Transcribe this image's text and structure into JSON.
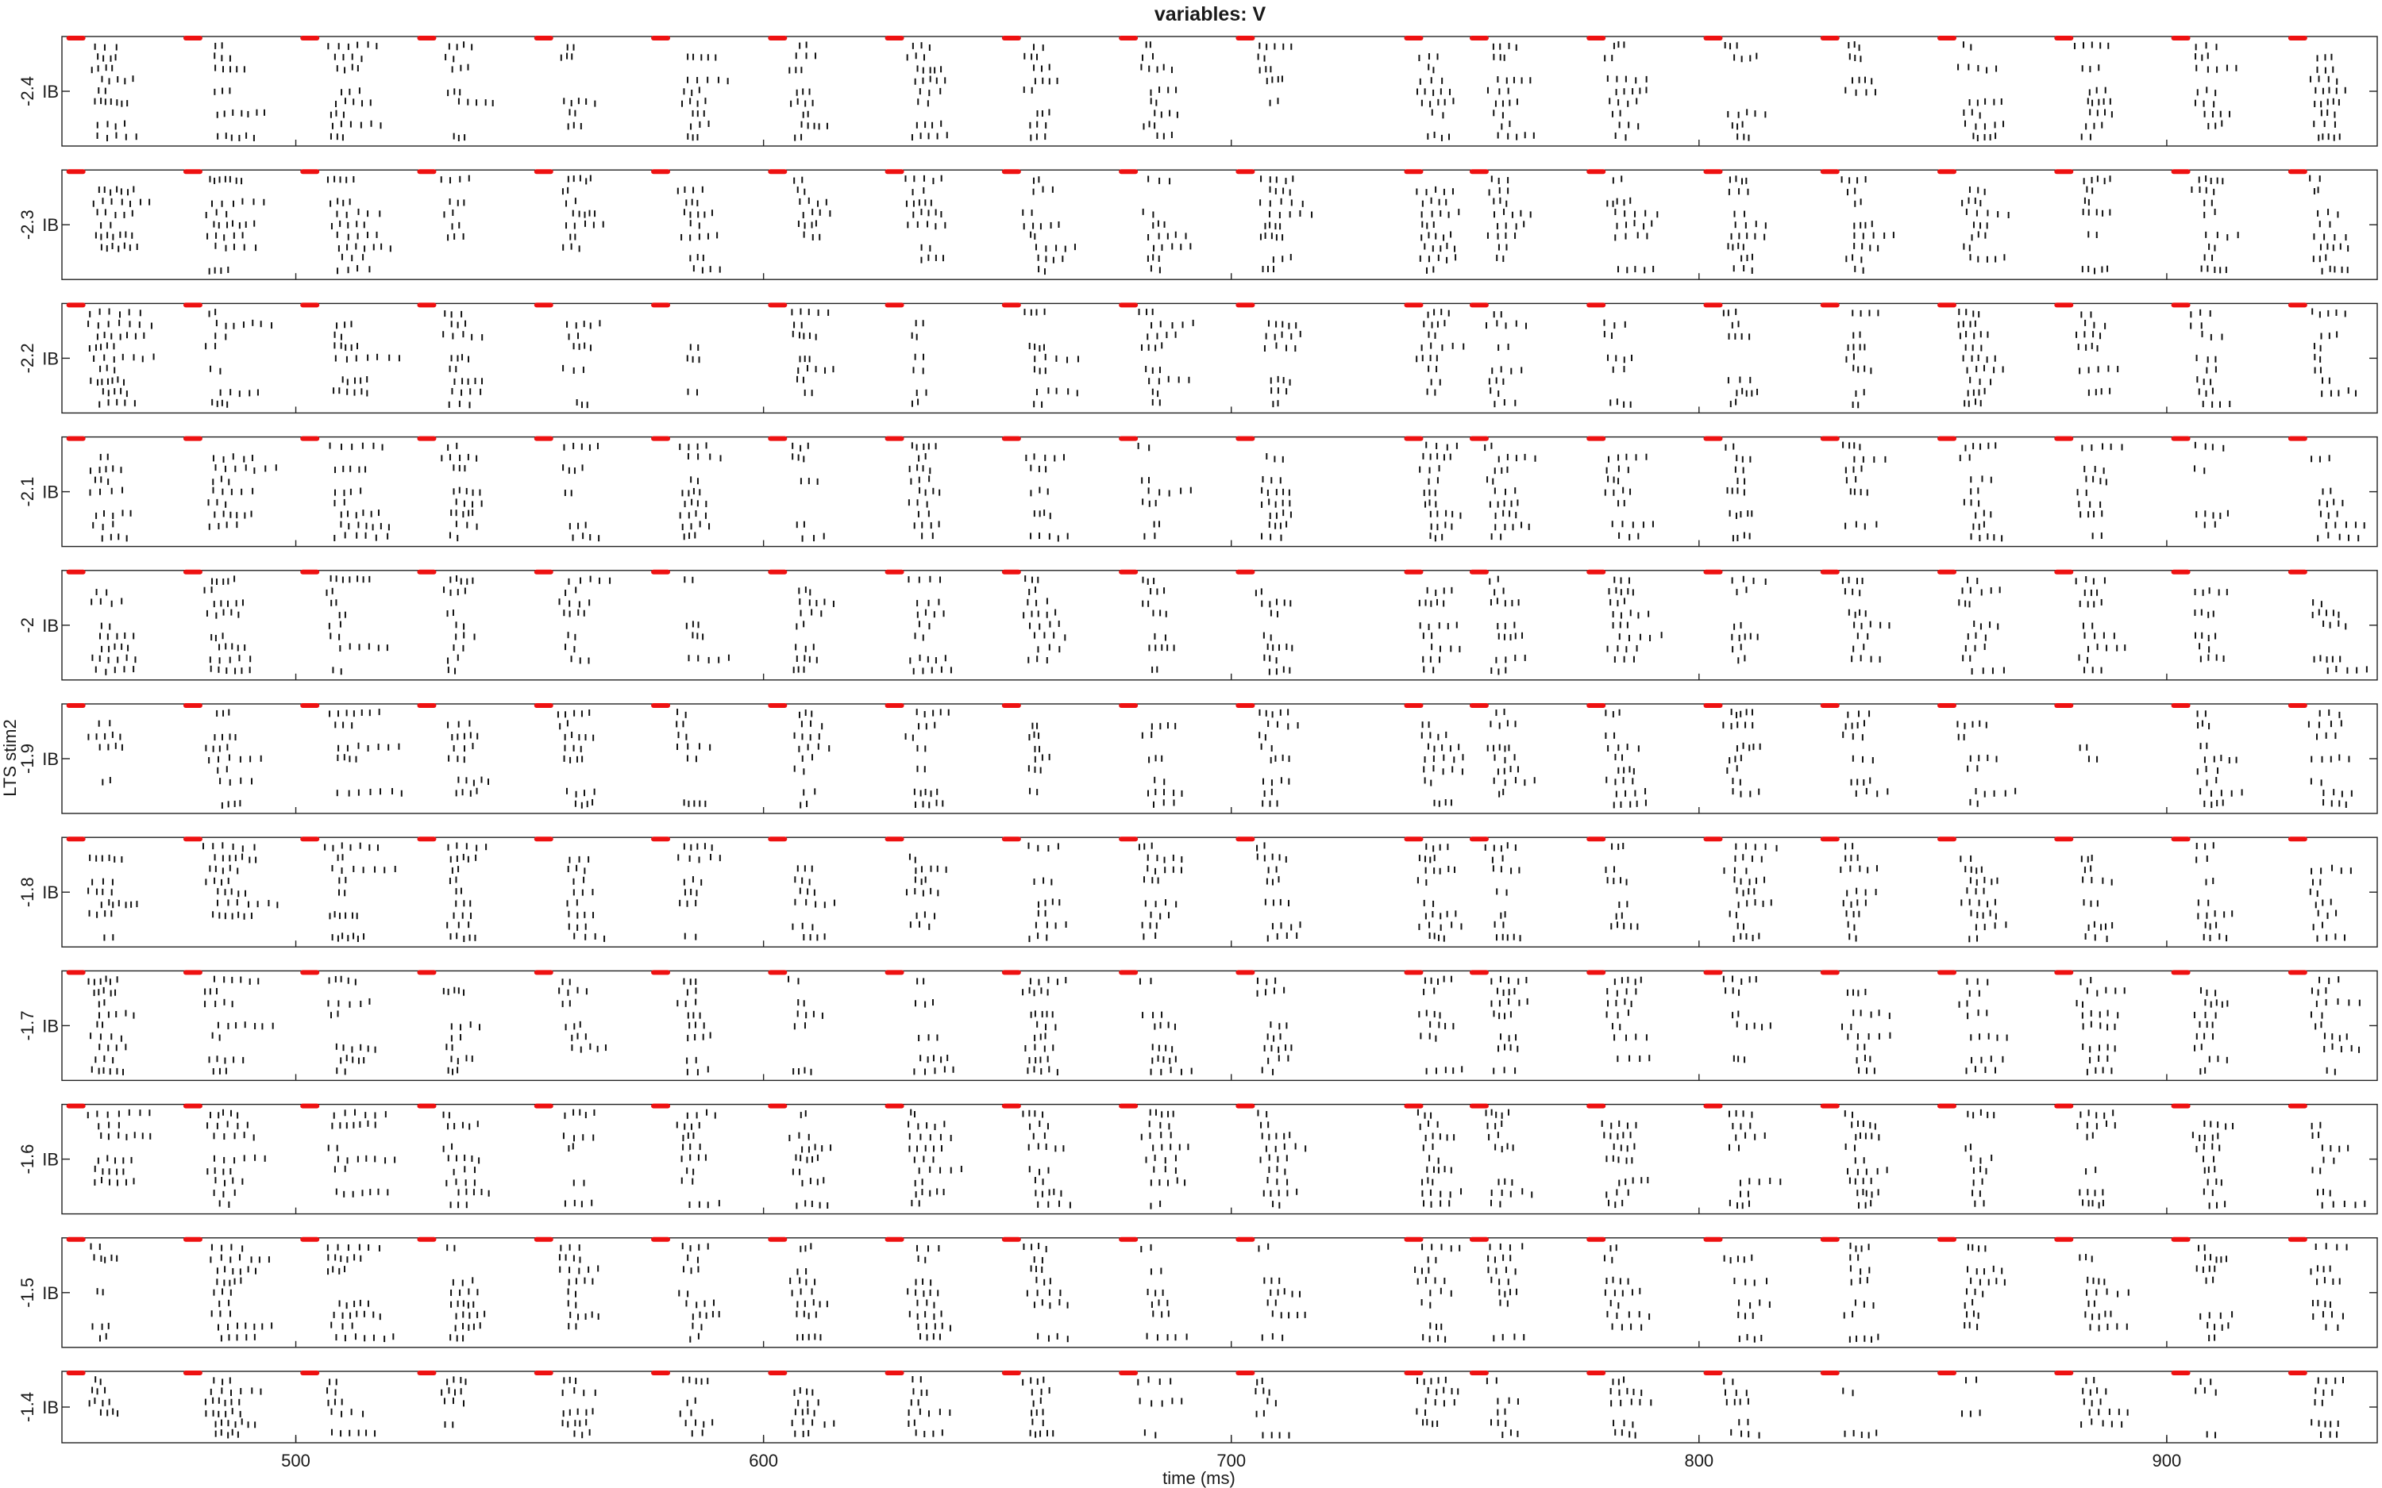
{
  "figure": {
    "title": "variables: V",
    "xlabel": "time (ms)",
    "ylabel": "LTS stim2"
  },
  "chart_data": {
    "type": "raster",
    "title": "variables: V",
    "xlabel": "time (ms)",
    "ylabel": "LTS stim2",
    "xlim": [
      450,
      945
    ],
    "xticks": [
      500,
      600,
      700,
      800,
      900
    ],
    "population_label": "IB",
    "panels": [
      {
        "param_label": "-2.4"
      },
      {
        "param_label": "-2.3"
      },
      {
        "param_label": "-2.2"
      },
      {
        "param_label": "-2.1"
      },
      {
        "param_label": "-2"
      },
      {
        "param_label": "-1.9"
      },
      {
        "param_label": "-1.8"
      },
      {
        "param_label": "-1.7"
      },
      {
        "param_label": "-1.6"
      },
      {
        "param_label": "-1.5"
      },
      {
        "param_label": "-1.4"
      }
    ],
    "stimulus_times_ms": [
      453,
      478,
      503,
      528,
      553,
      578,
      603,
      628,
      653,
      678,
      703,
      739,
      753,
      778,
      803,
      828,
      853,
      878,
      903,
      928
    ],
    "burst_times_ms": [
      456,
      481,
      507,
      532,
      557,
      582,
      606,
      631,
      656,
      681,
      706,
      740,
      755,
      780,
      806,
      831,
      856,
      881,
      906,
      931
    ],
    "colors": {
      "stimulus": "#ee1111",
      "spikes": "#111111",
      "axes": "#222222"
    }
  }
}
